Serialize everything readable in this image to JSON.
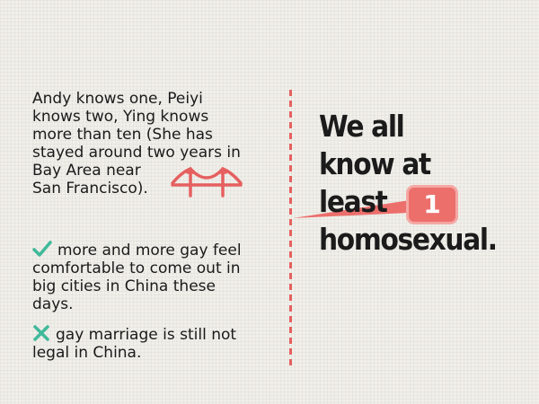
{
  "left": {
    "paragraph_lines": [
      "Andy knows one, Peiyi",
      "knows two, Ying knows",
      "more than ten (She has",
      "stayed around two years in",
      "Bay Area near",
      "San Francisco)."
    ],
    "points": [
      {
        "icon": "check-icon",
        "lines": [
          "more and more gay feel",
          "comfortable to come out in",
          "big cities in China these",
          "days."
        ]
      },
      {
        "icon": "cross-icon",
        "lines": [
          "gay marriage is still not",
          "legal in China."
        ]
      }
    ]
  },
  "right": {
    "headline_lines": [
      "We all",
      "know at",
      "least",
      "homosexual."
    ],
    "badge_number": "1"
  },
  "colors": {
    "accent": "#e5605f",
    "badge": "#ec6f6c",
    "badge_border": "#f4a8a4",
    "check": "#3fb99a",
    "text": "#1a1a1a"
  }
}
